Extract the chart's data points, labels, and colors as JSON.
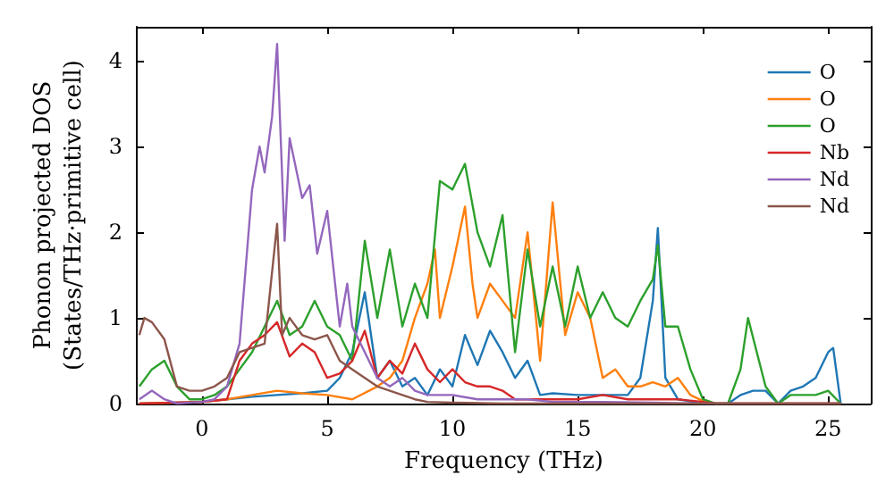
{
  "chart_data": {
    "type": "line",
    "xlabel": "Frequency (THz)",
    "ylabel": "Phonon projected DOS\n(States/THz·primitive cell)",
    "xlim": [
      -2.6,
      26.7
    ],
    "ylim": [
      0,
      4.4
    ],
    "xticks": [
      0,
      5,
      10,
      15,
      20,
      25
    ],
    "yticks": [
      0,
      1,
      2,
      3,
      4
    ],
    "grid": false,
    "legend": "top right",
    "marker": "none",
    "line_style": "solid",
    "series": [
      {
        "name": "O",
        "color": "#1f77b4",
        "x": [
          -2.5,
          0,
          2,
          3,
          4,
          5,
          5.5,
          6,
          6.5,
          7,
          7.5,
          8,
          8.5,
          9,
          9.5,
          10,
          10.5,
          11,
          11.5,
          12,
          12.5,
          13,
          13.5,
          14,
          15,
          16,
          17,
          17.5,
          18,
          18.2,
          18.5,
          19,
          20,
          21,
          21.5,
          22,
          22.5,
          23,
          23.5,
          24,
          24.5,
          25,
          25.2,
          25.5
        ],
        "values": [
          0,
          0.02,
          0.08,
          0.1,
          0.12,
          0.15,
          0.3,
          0.6,
          1.3,
          0.3,
          0.5,
          0.2,
          0.3,
          0.1,
          0.4,
          0.2,
          0.8,
          0.45,
          0.85,
          0.6,
          0.3,
          0.5,
          0.1,
          0.12,
          0.1,
          0.1,
          0.1,
          0.3,
          1.2,
          2.05,
          0.3,
          0.05,
          0,
          0,
          0.1,
          0.15,
          0.15,
          0,
          0.15,
          0.2,
          0.3,
          0.6,
          0.65,
          0
        ]
      },
      {
        "name": "O",
        "color": "#ff7f0e",
        "x": [
          -2.5,
          0,
          1,
          2,
          3,
          4,
          5,
          6,
          7,
          7.5,
          8,
          8.5,
          9,
          9.3,
          9.5,
          10,
          10.5,
          10.8,
          11,
          11.5,
          12,
          12.5,
          13,
          13.5,
          14,
          14.5,
          15,
          15.5,
          16,
          16.5,
          17,
          17.5,
          18,
          18.5,
          19,
          19.5,
          20,
          20.5,
          25.5
        ],
        "values": [
          0,
          0.02,
          0.05,
          0.1,
          0.15,
          0.12,
          0.1,
          0.05,
          0.2,
          0.3,
          0.5,
          1.0,
          1.4,
          1.8,
          1.0,
          1.6,
          2.3,
          1.4,
          1.0,
          1.4,
          1.2,
          1.0,
          2.0,
          0.5,
          2.35,
          0.8,
          1.3,
          1.0,
          0.3,
          0.4,
          0.2,
          0.2,
          0.25,
          0.2,
          0.3,
          0.1,
          0.03,
          0,
          0
        ]
      },
      {
        "name": "O",
        "color": "#2ca02c",
        "x": [
          -2.5,
          -2,
          -1.5,
          -1,
          -0.5,
          0,
          0.5,
          1,
          1.5,
          2,
          2.5,
          3,
          3.5,
          4,
          4.5,
          5,
          5.5,
          6,
          6.5,
          7,
          7.5,
          8,
          8.5,
          9,
          9.5,
          10,
          10.5,
          11,
          11.5,
          12,
          12.5,
          13,
          13.5,
          14,
          14.5,
          15,
          15.5,
          16,
          16.5,
          17,
          17.5,
          18,
          18.2,
          18.5,
          19,
          19.5,
          20,
          20.5,
          21,
          21.5,
          21.8,
          22.5,
          23,
          23.5,
          24,
          24.5,
          25,
          25.5
        ],
        "values": [
          0.2,
          0.4,
          0.5,
          0.2,
          0.05,
          0.05,
          0.1,
          0.2,
          0.4,
          0.6,
          0.9,
          1.2,
          0.8,
          0.9,
          1.2,
          0.9,
          0.8,
          0.5,
          1.9,
          1.0,
          1.8,
          0.9,
          1.4,
          1.0,
          2.6,
          2.5,
          2.8,
          2.0,
          1.6,
          2.2,
          0.6,
          1.8,
          0.9,
          1.6,
          0.9,
          1.6,
          1.0,
          1.3,
          1.0,
          0.9,
          1.2,
          1.45,
          1.85,
          0.9,
          0.9,
          0.4,
          0.05,
          0,
          0,
          0.4,
          1.0,
          0.2,
          0,
          0.1,
          0.1,
          0.1,
          0.15,
          0
        ]
      },
      {
        "name": "Nb",
        "color": "#d62728",
        "x": [
          -2.5,
          0,
          1,
          1.5,
          2,
          2.5,
          3,
          3.5,
          4,
          4.5,
          5,
          5.5,
          6,
          6.5,
          7,
          7.5,
          8,
          8.5,
          9,
          9.5,
          10,
          10.5,
          11,
          11.5,
          12,
          12.5,
          13,
          14,
          15,
          16,
          17,
          18,
          19,
          20,
          20.5,
          25.5
        ],
        "values": [
          0,
          0.02,
          0.05,
          0.5,
          0.7,
          0.8,
          0.95,
          0.55,
          0.7,
          0.6,
          0.3,
          0.35,
          0.5,
          0.85,
          0.3,
          0.5,
          0.35,
          0.7,
          0.4,
          0.25,
          0.4,
          0.25,
          0.2,
          0.2,
          0.15,
          0.05,
          0.05,
          0.05,
          0.05,
          0.1,
          0.05,
          0.05,
          0.05,
          0.02,
          0,
          0
        ]
      },
      {
        "name": "Nd",
        "color": "#9467bd",
        "x": [
          -2.5,
          -2,
          -1.5,
          -1,
          0,
          0.5,
          1,
          1.5,
          2,
          2.3,
          2.5,
          2.8,
          3,
          3.3,
          3.5,
          4,
          4.3,
          4.6,
          5,
          5.5,
          5.8,
          6,
          6.5,
          7,
          7.5,
          8,
          8.5,
          9,
          10,
          11,
          12,
          13,
          14,
          16,
          18,
          20,
          25.5
        ],
        "values": [
          0.05,
          0.15,
          0.05,
          0,
          0.02,
          0.05,
          0.2,
          0.7,
          2.5,
          3.0,
          2.7,
          3.35,
          4.2,
          1.9,
          3.1,
          2.4,
          2.55,
          1.75,
          2.25,
          0.9,
          1.4,
          0.9,
          0.6,
          0.3,
          0.2,
          0.3,
          0.15,
          0.1,
          0.1,
          0.05,
          0.05,
          0.05,
          0.02,
          0.02,
          0.01,
          0,
          0
        ]
      },
      {
        "name": "Nd",
        "color": "#8c564b",
        "x": [
          -2.5,
          -2.3,
          -2,
          -1.5,
          -1,
          -0.5,
          0,
          0.5,
          1,
          1.5,
          2,
          2.5,
          3,
          3.2,
          3.5,
          4,
          4.5,
          5,
          5.5,
          6,
          6.5,
          7,
          7.5,
          8,
          8.5,
          9,
          10,
          12,
          25.5
        ],
        "values": [
          0.8,
          1.0,
          0.95,
          0.75,
          0.2,
          0.15,
          0.15,
          0.2,
          0.3,
          0.6,
          0.65,
          0.7,
          2.1,
          0.8,
          1.0,
          0.8,
          0.75,
          0.8,
          0.5,
          0.4,
          0.3,
          0.2,
          0.15,
          0.1,
          0.05,
          0.02,
          0.01,
          0,
          0
        ]
      }
    ]
  }
}
